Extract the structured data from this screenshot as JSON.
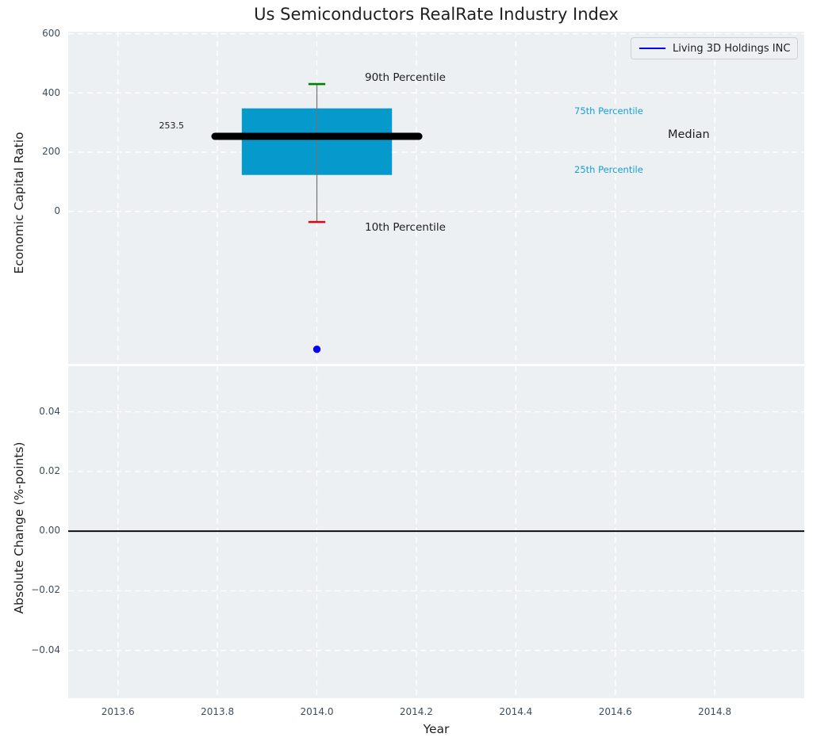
{
  "figure": {
    "title": "Us Semiconductors RealRate Industry Index",
    "xlabel": "Year",
    "background": "#ffffff",
    "plot_background": "#ecf0f2",
    "grid_color": "#ffffff",
    "tick_color": "#3e4e5c",
    "text_color": "#202020",
    "percentile_label_color": "#19a0d4",
    "legend_background": "#edf1f3"
  },
  "legend": {
    "label": "Living 3D Holdings INC",
    "line_color": "#0000ff",
    "position": "upper right"
  },
  "annotations": {
    "p90": "90th Percentile",
    "p10": "10th Percentile",
    "p75": "75th Percentile",
    "p25": "25th Percentile",
    "median": "Median",
    "median_value": "253.5"
  },
  "chart_data": [
    {
      "type": "boxplot",
      "subplot": "top",
      "ylabel": "Economic Capital Ratio",
      "xlabel": "Year",
      "xlim": [
        2013.5,
        2014.98
      ],
      "ylim": [
        -515,
        607
      ],
      "x_ticks": [
        2013.6,
        2013.8,
        2014.0,
        2014.2,
        2014.4,
        2014.6,
        2014.8
      ],
      "x_tick_labels": [
        "2013.6",
        "2013.8",
        "2014.0",
        "2014.2",
        "2014.4",
        "2014.6",
        "2014.8"
      ],
      "y_ticks": [
        600,
        400,
        200,
        0
      ],
      "y_tick_labels": [
        "600",
        "400",
        "200",
        "0"
      ],
      "grid": true,
      "box": {
        "x": 2014.0,
        "p10": -36,
        "p25": 123,
        "median": 253.5,
        "p75": 348,
        "p90": 430,
        "box_color": "#0699cb",
        "median_color": "#000000",
        "cap90_color": "#008000",
        "cap10_color": "#e8000b",
        "whisker_color": "#737373",
        "box_half_width": 0.151,
        "median_half_width": 0.205,
        "cap_half_width": 0.017
      },
      "point": {
        "label": "Living 3D Holdings INC",
        "x": 2014.0,
        "y": -466,
        "color": "#0000ff",
        "radius": 4.7
      }
    },
    {
      "type": "line",
      "subplot": "bottom",
      "ylabel": "Absolute Change (%-points)",
      "xlabel": "Year",
      "xlim": [
        2013.5,
        2014.98
      ],
      "ylim": [
        -0.056,
        0.0553
      ],
      "x_ticks": [
        2013.6,
        2013.8,
        2014.0,
        2014.2,
        2014.4,
        2014.6,
        2014.8
      ],
      "x_tick_labels": [
        "2013.6",
        "2013.8",
        "2014.0",
        "2014.2",
        "2014.4",
        "2014.6",
        "2014.8"
      ],
      "y_ticks": [
        0.04,
        0.02,
        0.0,
        -0.02,
        -0.04
      ],
      "y_tick_labels": [
        "0.04",
        "0.02",
        "0.00",
        "−0.02",
        "−0.04"
      ],
      "grid": true,
      "zero_line": 0.0,
      "series": []
    }
  ]
}
